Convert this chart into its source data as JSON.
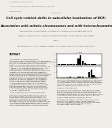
{
  "title_line1": "Cell cycle-related shifts in subcellular localization of BCR:",
  "title_line2": "Association with mitotic chromosomes and with heterochromatin",
  "background_color": "#f0ede8",
  "text_color": "#333333",
  "chart1_label": "S. cha",
  "chart2_label": "M. Cy",
  "chart1_x": [
    1,
    2,
    3,
    4,
    5,
    6,
    7,
    8,
    9,
    10,
    11,
    12,
    13,
    14,
    15,
    16,
    17,
    18,
    19,
    20
  ],
  "chart1_y": [
    0.2,
    0.3,
    0.2,
    0.3,
    0.4,
    0.5,
    0.3,
    0.4,
    0.8,
    5.2,
    8.1,
    3.2,
    1.1,
    0.5,
    0.3,
    0.2,
    0.2,
    0.2,
    0.1,
    0.1
  ],
  "chart2_x": [
    1,
    2,
    3,
    4,
    5,
    6,
    7,
    8,
    9,
    10,
    11,
    12,
    13,
    14,
    15,
    16,
    17,
    18,
    19,
    20
  ],
  "chart2_y": [
    0.2,
    0.2,
    0.2,
    0.2,
    0.3,
    0.4,
    0.2,
    0.2,
    0.3,
    0.4,
    0.5,
    0.4,
    0.3,
    0.3,
    4.8,
    7.2,
    2.1,
    0.5,
    0.2,
    0.1
  ]
}
